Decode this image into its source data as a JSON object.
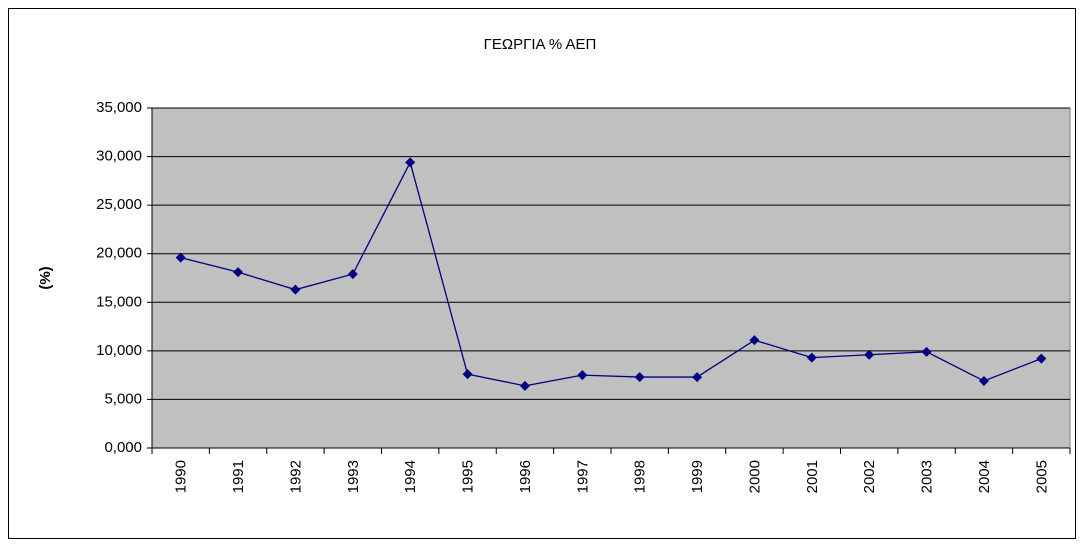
{
  "chart_data": {
    "type": "line",
    "title": "ΓΕΩΡΓΙΑ % ΑΕΠ",
    "y_label": "(%)",
    "categories": [
      "1990",
      "1991",
      "1992",
      "1993",
      "1994",
      "1995",
      "1996",
      "1997",
      "1998",
      "1999",
      "2000",
      "2001",
      "2002",
      "2003",
      "2004",
      "2005"
    ],
    "series": [
      {
        "color": "#000080",
        "values": [
          19.6,
          18.1,
          16.3,
          17.9,
          29.4,
          7.6,
          6.4,
          7.5,
          7.3,
          7.3,
          11.1,
          9.3,
          9.6,
          9.9,
          6.9,
          9.2
        ]
      }
    ],
    "ylim": [
      0,
      35
    ],
    "yticks": [
      {
        "value": 0,
        "label": "0,000"
      },
      {
        "value": 5,
        "label": "5,000"
      },
      {
        "value": 10,
        "label": "10,000"
      },
      {
        "value": 15,
        "label": "15,000"
      },
      {
        "value": 20,
        "label": "20,000"
      },
      {
        "value": 25,
        "label": "25,000"
      },
      {
        "value": 30,
        "label": "30,000"
      },
      {
        "value": 35,
        "label": "35,000"
      }
    ],
    "grid": true,
    "plot_background": "#c0c0c0"
  }
}
